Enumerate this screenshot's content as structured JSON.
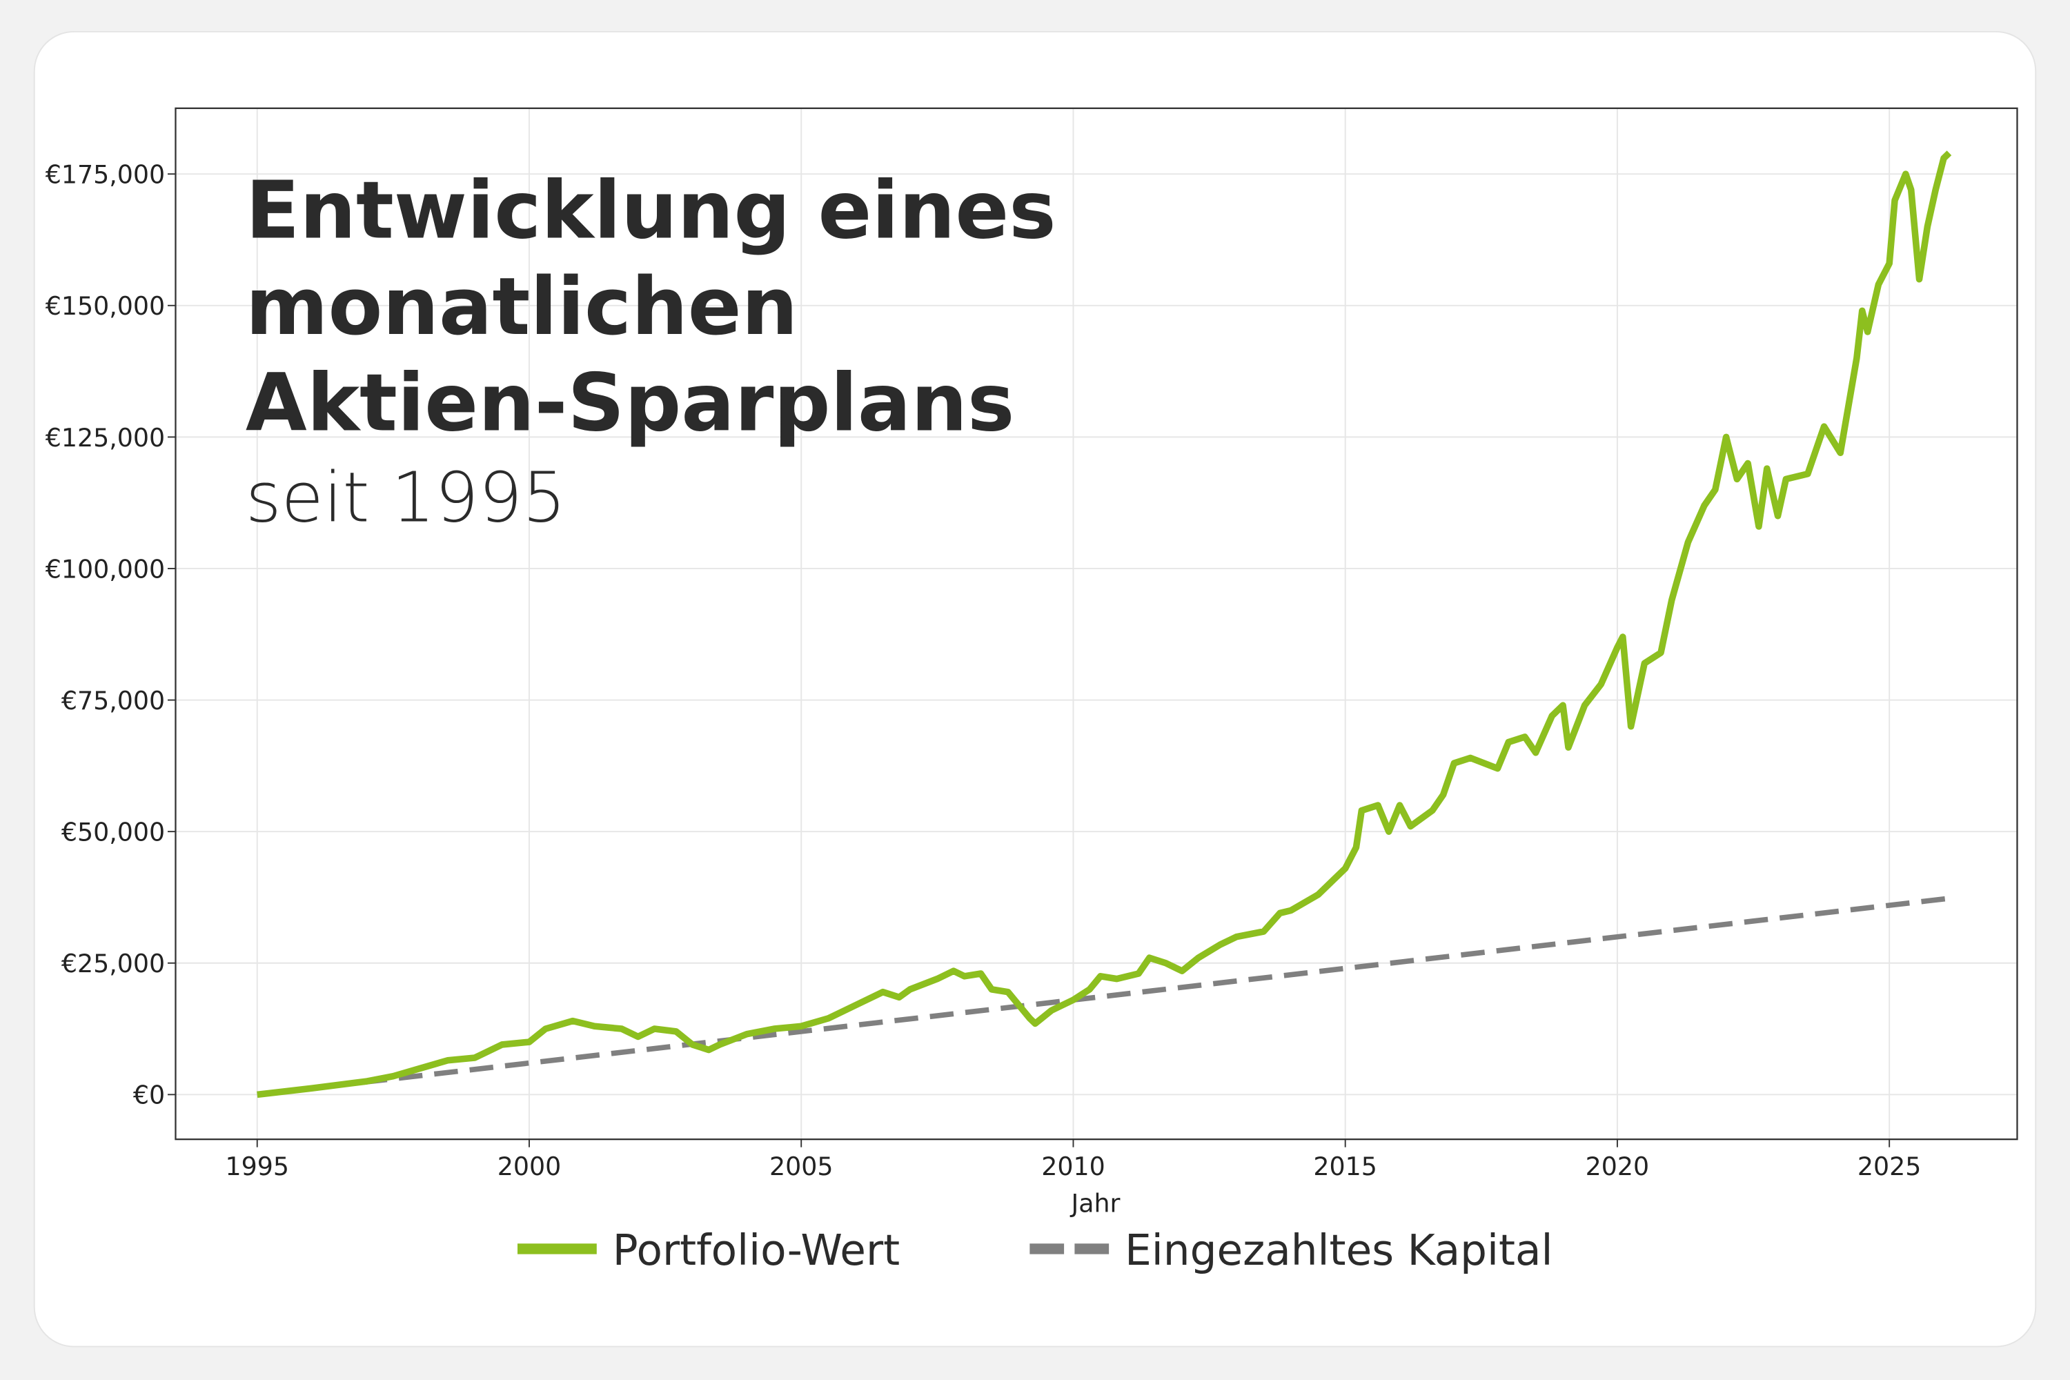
{
  "chart_data": {
    "type": "line",
    "title": [
      "Entwicklung eines",
      "monatlichen",
      "Aktien-Sparplans"
    ],
    "subtitle": "seit 1995",
    "x_label": "Jahr",
    "xlim": [
      1993.5,
      2027.35
    ],
    "xticks": [
      1995,
      2000,
      2005,
      2010,
      2015,
      2020,
      2025
    ],
    "ylim": [
      -8500,
      187500
    ],
    "yticks": [
      {
        "value": 0,
        "label": "€0"
      },
      {
        "value": 25000,
        "label": "€25,000"
      },
      {
        "value": 50000,
        "label": "€50,000"
      },
      {
        "value": 75000,
        "label": "€75,000"
      },
      {
        "value": 100000,
        "label": "€100,000"
      },
      {
        "value": 125000,
        "label": "€125,000"
      },
      {
        "value": 150000,
        "label": "€150,000"
      },
      {
        "value": 175000,
        "label": "€175,000"
      }
    ],
    "grid": true,
    "legend": "bottom",
    "series": [
      {
        "name": "Portfolio-Wert",
        "color": "#8dbf1f",
        "dash": false,
        "x": [
          1995.0,
          1996,
          1997,
          1997.5,
          1998,
          1998.5,
          1999,
          1999.5,
          2000,
          2000.3,
          2000.8,
          2001.2,
          2001.7,
          2002,
          2002.3,
          2002.7,
          2003.0,
          2003.3,
          2003.5,
          2004,
          2004.5,
          2005,
          2005.5,
          2006,
          2006.5,
          2006.8,
          2007,
          2007.5,
          2007.8,
          2008,
          2008.3,
          2008.5,
          2008.8,
          2009.0,
          2009.2,
          2009.3,
          2009.6,
          2010,
          2010.3,
          2010.5,
          2010.8,
          2011.2,
          2011.4,
          2011.7,
          2011.9,
          2012,
          2012.3,
          2012.7,
          2013,
          2013.5,
          2013.8,
          2014,
          2014.5,
          2015,
          2015.2,
          2015.3,
          2015.6,
          2015.8,
          2016,
          2016.2,
          2016.6,
          2016.8,
          2017,
          2017.3,
          2017.8,
          2018,
          2018.3,
          2018.5,
          2018.8,
          2019,
          2019.1,
          2019.4,
          2019.7,
          2020,
          2020.1,
          2020.25,
          2020.5,
          2020.8,
          2021,
          2021.3,
          2021.6,
          2021.8,
          2022,
          2022.2,
          2022.4,
          2022.6,
          2022.75,
          2022.95,
          2023.1,
          2023.5,
          2023.8,
          2024.1,
          2024.4,
          2024.5,
          2024.6,
          2024.8,
          2025.0,
          2025.1,
          2025.3,
          2025.4,
          2025.55,
          2025.7,
          2025.85,
          2026.0,
          2026.1
        ],
        "values": [
          0,
          1200,
          2500,
          3500,
          5000,
          6500,
          7000,
          9500,
          10000,
          12500,
          14000,
          13000,
          12500,
          11000,
          12500,
          12000,
          9500,
          8500,
          9500,
          11500,
          12500,
          13000,
          14500,
          17000,
          19500,
          18500,
          20000,
          22000,
          23500,
          22500,
          23000,
          20000,
          19500,
          17000,
          14500,
          13500,
          16000,
          18000,
          20000,
          22500,
          22000,
          23000,
          26000,
          25000,
          24000,
          23500,
          26000,
          28500,
          30000,
          31000,
          34500,
          35000,
          38000,
          43000,
          47000,
          54000,
          55000,
          50000,
          55000,
          51000,
          54000,
          57000,
          63000,
          64000,
          62000,
          67000,
          68000,
          65000,
          72000,
          74000,
          66000,
          74000,
          78000,
          85000,
          87000,
          70000,
          82000,
          84000,
          94000,
          105000,
          112000,
          115000,
          125000,
          117000,
          120000,
          108000,
          119000,
          110000,
          117000,
          118000,
          127000,
          122000,
          140000,
          149000,
          145000,
          154000,
          158000,
          170000,
          175000,
          172000,
          155000,
          165000,
          172000,
          178000,
          179000
        ]
      },
      {
        "name": "Eingezahltes Kapital",
        "color": "#808080",
        "dash": true,
        "x": [
          1995.0,
          2026.1
        ],
        "values": [
          0,
          37300
        ]
      }
    ]
  }
}
